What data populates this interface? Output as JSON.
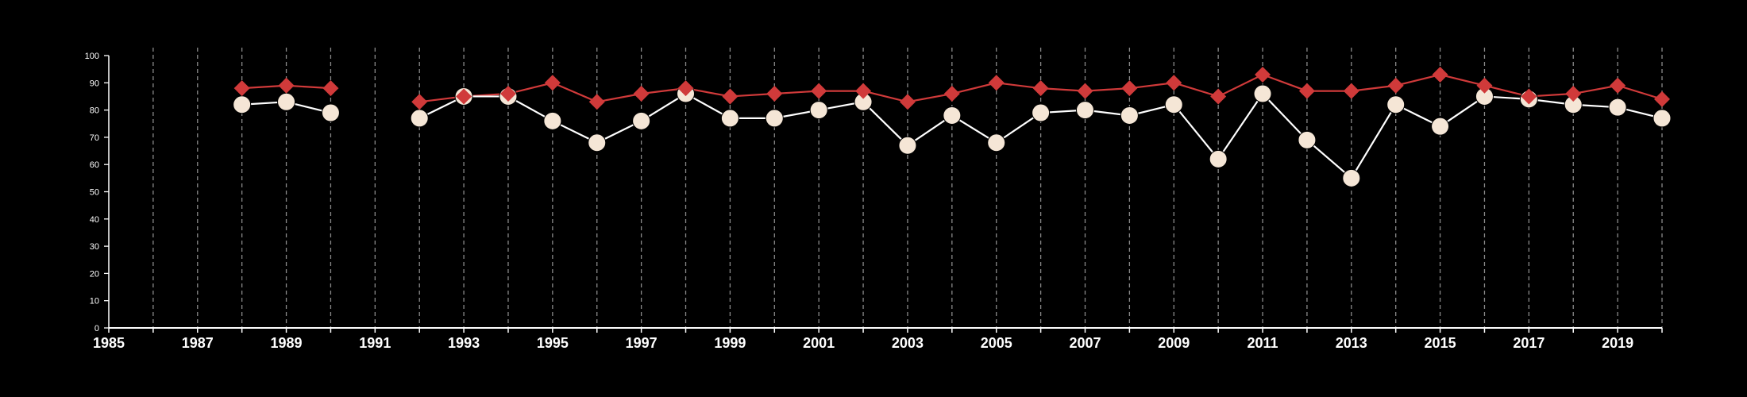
{
  "chart_data": {
    "type": "line",
    "xlim": [
      1985,
      2020
    ],
    "ylim": [
      0,
      100
    ],
    "y_ticks": [
      0,
      10,
      20,
      30,
      40,
      50,
      60,
      70,
      80,
      90,
      100
    ],
    "x_ticks": [
      1985,
      1987,
      1989,
      1991,
      1993,
      1995,
      1997,
      1999,
      2001,
      2003,
      2005,
      2007,
      2009,
      2011,
      2013,
      2015,
      2017,
      2019
    ],
    "x_minor_ticks_every": 1,
    "vertical_gridlines": "dashed at every year",
    "legend": "none",
    "x": [
      1988,
      1989,
      1990,
      1991,
      1992,
      1993,
      1994,
      1995,
      1996,
      1997,
      1998,
      1999,
      2000,
      2001,
      2002,
      2003,
      2004,
      2005,
      2006,
      2007,
      2008,
      2009,
      2010,
      2011,
      2012,
      2013,
      2014,
      2015,
      2016,
      2017,
      2018,
      2019,
      2020
    ],
    "series": [
      {
        "marker": "diamond",
        "color": "#d03a3a",
        "values": [
          88,
          89,
          88,
          null,
          83,
          85,
          86,
          90,
          83,
          86,
          88,
          85,
          86,
          87,
          87,
          83,
          86,
          90,
          88,
          87,
          88,
          90,
          85,
          93,
          87,
          87,
          89,
          93,
          89,
          85,
          86,
          89,
          84
        ]
      },
      {
        "marker": "circle",
        "color": "#f5e6d6",
        "values": [
          82,
          83,
          79,
          null,
          77,
          85,
          85,
          76,
          68,
          76,
          86,
          77,
          77,
          80,
          83,
          67,
          78,
          68,
          79,
          80,
          78,
          82,
          62,
          86,
          69,
          55,
          82,
          74,
          85,
          84,
          82,
          81,
          77
        ]
      }
    ]
  }
}
